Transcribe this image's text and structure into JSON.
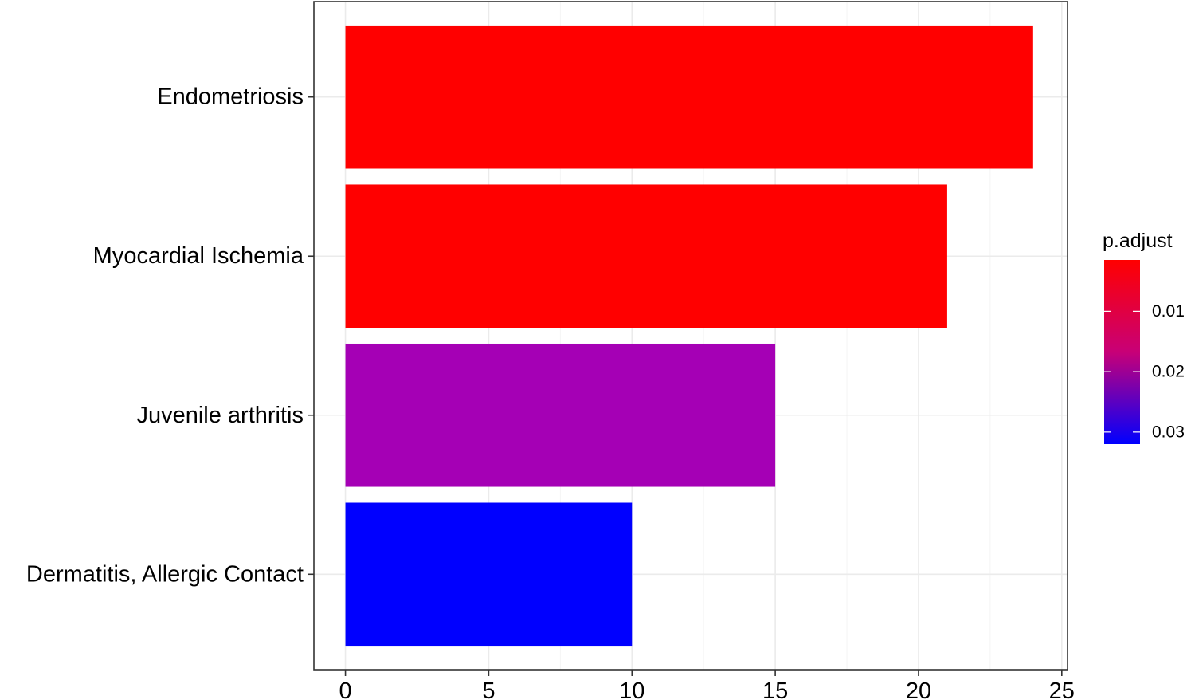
{
  "chart_data": {
    "type": "bar",
    "orientation": "horizontal",
    "categories": [
      "Endometriosis",
      "Myocardial Ischemia",
      "Juvenile arthritis",
      "Dermatitis, Allergic Contact"
    ],
    "values": [
      24,
      21,
      15,
      10
    ],
    "p_adjust": [
      0.002,
      0.003,
      0.016,
      0.031
    ],
    "bar_colors": [
      "#FF0000",
      "#FF0000",
      "#A500B5",
      "#0000FF"
    ],
    "title": "",
    "xlabel": "",
    "ylabel": "",
    "xlim": [
      -1.1,
      25.2
    ],
    "x_ticks": [
      0,
      5,
      10,
      15,
      20,
      25
    ],
    "grid": true,
    "legend": {
      "title": "p.adjust",
      "position": "right",
      "range": [
        0.0015,
        0.032
      ],
      "ticks": [
        0.01,
        0.02,
        0.03
      ],
      "tick_labels": [
        "0.01",
        "0.02",
        "0.03"
      ],
      "color_low": "#FF0000",
      "color_high": "#0000FF"
    }
  }
}
